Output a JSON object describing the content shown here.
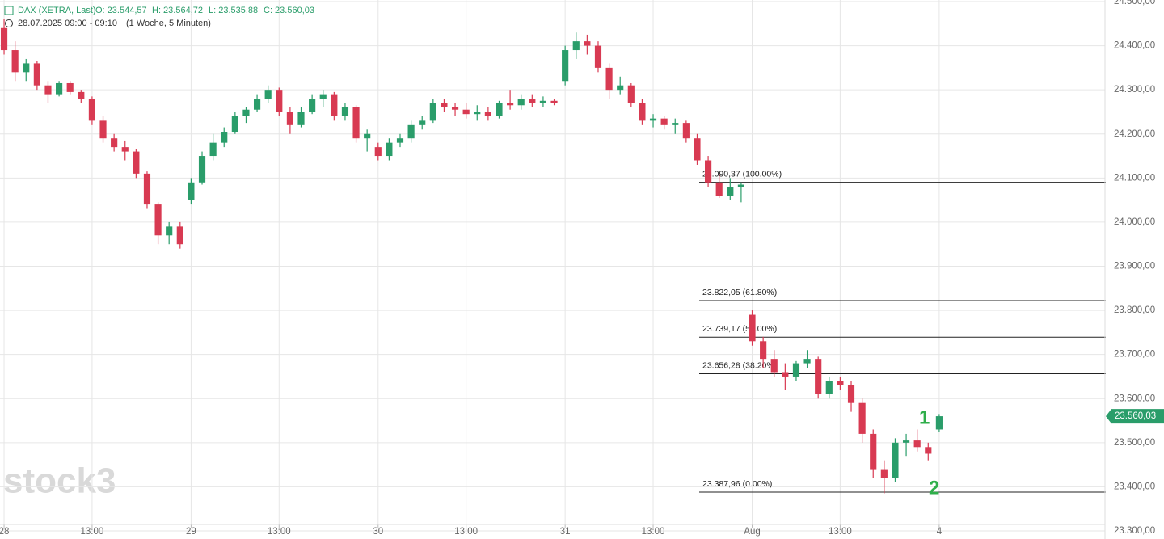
{
  "chart_data": {
    "type": "candlestick",
    "title": "DAX (XETRA, Last)",
    "legend_values": [
      "O: 23.544,57",
      "H: 23.564,72",
      "L: 23.535,88",
      "C: 23.560,03"
    ],
    "subtitle": "28.07.2025 09:00 - 09:10",
    "interval": "(1 Woche, 5 Minuten)",
    "watermark": "stock3",
    "up_color": "#2a9d6a",
    "down_color": "#d83a52",
    "grid": true,
    "open": [
      24440,
      24390,
      24340,
      24360,
      24310,
      24290,
      24315,
      24295,
      24280,
      24230,
      24190,
      24170,
      24160,
      24110,
      24040,
      23970,
      23990,
      24050,
      24090,
      24150,
      24180,
      24205,
      24240,
      24255,
      24280,
      24300,
      24250,
      24220,
      24250,
      24280,
      24290,
      24240,
      24260,
      24190,
      24170,
      24150,
      24180,
      24190,
      24220,
      24230,
      24270,
      24260,
      24255,
      24245,
      24250,
      24240,
      24270,
      24265,
      24280,
      24270,
      24275,
      24320,
      24390,
      24410,
      24400,
      24350,
      24300,
      24310,
      24270,
      24230,
      24235,
      24220,
      24225,
      24190,
      24140,
      24090,
      24060,
      24080,
      23790,
      23730,
      23690,
      23660,
      23650,
      23680,
      23690,
      23610,
      23640,
      23630,
      23590,
      23520,
      23440,
      23420,
      23500,
      23505,
      23490,
      23530
    ],
    "high": [
      24460,
      24410,
      24370,
      24365,
      24320,
      24320,
      24320,
      24300,
      24285,
      24240,
      24200,
      24185,
      24165,
      24115,
      24045,
      24000,
      24000,
      24100,
      24160,
      24200,
      24215,
      24250,
      24260,
      24290,
      24310,
      24305,
      24260,
      24260,
      24290,
      24300,
      24295,
      24270,
      24265,
      24210,
      24180,
      24190,
      24200,
      24230,
      24240,
      24280,
      24280,
      24270,
      24270,
      24265,
      24260,
      24275,
      24300,
      24290,
      24290,
      24285,
      24280,
      24400,
      24430,
      24425,
      24410,
      24360,
      24330,
      24315,
      24280,
      24245,
      24240,
      24235,
      24230,
      24200,
      24150,
      24110,
      24100,
      24090,
      23800,
      23740,
      23710,
      23680,
      23685,
      23710,
      23695,
      23650,
      23650,
      23640,
      23600,
      23530,
      23460,
      23510,
      23520,
      23530,
      23500,
      23565
    ],
    "low": [
      24380,
      24320,
      24320,
      24300,
      24270,
      24285,
      24290,
      24270,
      24220,
      24180,
      24160,
      24140,
      24100,
      24030,
      23950,
      23950,
      23940,
      24040,
      24085,
      24140,
      24170,
      24200,
      24225,
      24250,
      24270,
      24240,
      24200,
      24215,
      24245,
      24260,
      24230,
      24230,
      24180,
      24160,
      24140,
      24140,
      24170,
      24180,
      24210,
      24225,
      24250,
      24240,
      24235,
      24230,
      24230,
      24235,
      24255,
      24255,
      24260,
      24260,
      24265,
      24310,
      24370,
      24380,
      24340,
      24280,
      24290,
      24260,
      24220,
      24215,
      24210,
      24200,
      24180,
      24130,
      24080,
      24055,
      24050,
      24045,
      23720,
      23670,
      23650,
      23620,
      23640,
      23670,
      23600,
      23600,
      23620,
      23570,
      23500,
      23420,
      23385,
      23410,
      23470,
      23480,
      23460,
      23525
    ],
    "close": [
      24390,
      24340,
      24360,
      24310,
      24290,
      24315,
      24295,
      24280,
      24230,
      24190,
      24170,
      24160,
      24110,
      24040,
      23970,
      23990,
      23950,
      24090,
      24150,
      24180,
      24205,
      24240,
      24255,
      24280,
      24300,
      24250,
      24220,
      24250,
      24280,
      24290,
      24240,
      24260,
      24190,
      24200,
      24150,
      24180,
      24190,
      24220,
      24230,
      24270,
      24260,
      24255,
      24245,
      24250,
      24240,
      24270,
      24265,
      24280,
      24270,
      24275,
      24270,
      24390,
      24410,
      24400,
      24350,
      24300,
      24310,
      24270,
      24230,
      24235,
      24220,
      24225,
      24190,
      24140,
      24090,
      24060,
      24080,
      24085,
      23730,
      23690,
      23660,
      23650,
      23680,
      23690,
      23610,
      23640,
      23630,
      23590,
      23520,
      23440,
      23420,
      23500,
      23505,
      23490,
      23475,
      23560
    ],
    "xlim": [
      -0.37,
      100.07
    ],
    "xticks": [
      {
        "value": 0,
        "label": "28"
      },
      {
        "value": 8,
        "label": "13:00"
      },
      {
        "value": 17,
        "label": "29"
      },
      {
        "value": 25,
        "label": "13:00"
      },
      {
        "value": 34,
        "label": "30"
      },
      {
        "value": 42,
        "label": "13:00"
      },
      {
        "value": 51,
        "label": "31"
      },
      {
        "value": 59,
        "label": "13:00"
      },
      {
        "value": 68,
        "label": "Aug"
      },
      {
        "value": 76,
        "label": "13:00"
      },
      {
        "value": 85,
        "label": "4"
      }
    ],
    "ylim": [
      23300,
      24500
    ],
    "yticks": [
      {
        "value": 23300,
        "label": "23.300,00"
      },
      {
        "value": 23400,
        "label": "23.400,00"
      },
      {
        "value": 23500,
        "label": "23.500,00"
      },
      {
        "value": 23600,
        "label": "23.600,00"
      },
      {
        "value": 23700,
        "label": "23.700,00"
      },
      {
        "value": 23800,
        "label": "23.800,00"
      },
      {
        "value": 23900,
        "label": "23.900,00"
      },
      {
        "value": 24000,
        "label": "24.000,00"
      },
      {
        "value": 24100,
        "label": "24.100,00"
      },
      {
        "value": 24200,
        "label": "24.200,00"
      },
      {
        "value": 24300,
        "label": "24.300,00"
      },
      {
        "value": 24400,
        "label": "24.400,00"
      },
      {
        "value": 24500,
        "label": "24.500,00"
      }
    ],
    "fib_levels": [
      {
        "value": 24090.37,
        "label": "24.090,37 (100.00%)"
      },
      {
        "value": 23822.05,
        "label": "23.822,05 (61.80%)"
      },
      {
        "value": 23739.17,
        "label": "23.739,17 (50.00%)"
      },
      {
        "value": 23656.28,
        "label": "23.656,28 (38.20%)"
      },
      {
        "value": 23387.96,
        "label": "23.387,96 (0.00%)"
      }
    ],
    "last_price": {
      "value": 23560.03,
      "label": "23.560,03"
    },
    "annotations": [
      "1",
      "2"
    ]
  }
}
